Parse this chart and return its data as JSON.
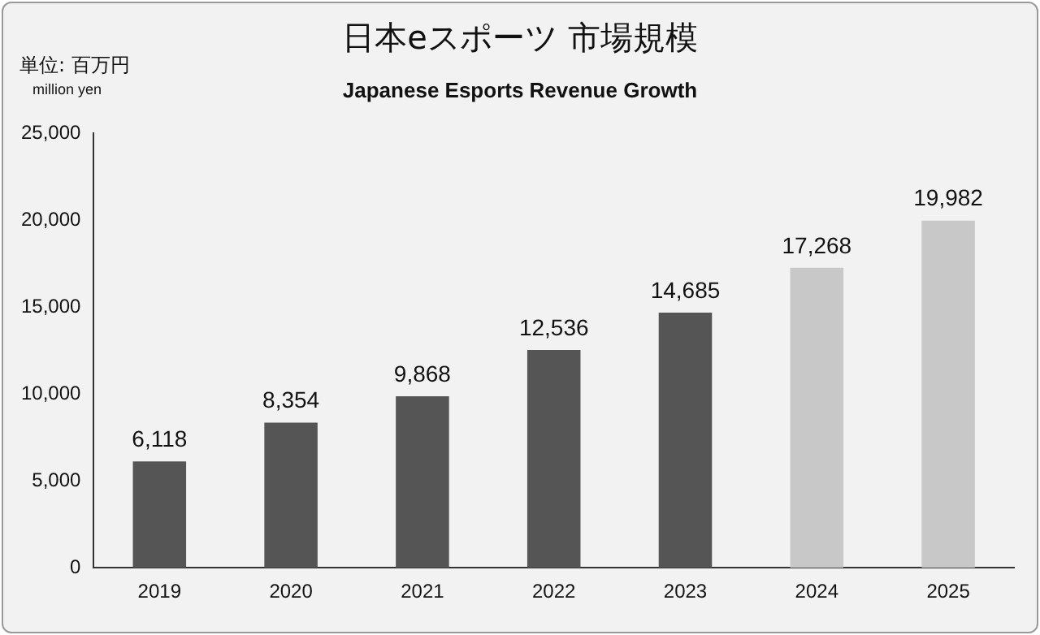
{
  "chart_data": {
    "type": "bar",
    "title": "日本eスポーツ 市場規模",
    "subtitle": "Japanese Esports Revenue Growth",
    "ylabel": "単位: 百万円",
    "annotations": [
      "million yen"
    ],
    "categories": [
      "2019",
      "2020",
      "2021",
      "2022",
      "2023",
      "2024",
      "2025"
    ],
    "values": [
      6118,
      8354,
      9868,
      12536,
      14685,
      17268,
      19982
    ],
    "colors": [
      "#555555",
      "#555555",
      "#555555",
      "#555555",
      "#555555",
      "#c8c8c8",
      "#c8c8c8"
    ],
    "value_labels": [
      "6,118",
      "8,354",
      "9,868",
      "12,536",
      "14,685",
      "17,268",
      "19,982"
    ],
    "ylim": [
      0,
      25000
    ],
    "yticks": [
      0,
      {
        "value": 5000,
        "label": "5,000"
      },
      {
        "value": 10000,
        "label": "10,000"
      },
      {
        "value": 15000,
        "label": "15,000"
      },
      {
        "value": 20000,
        "label": "20,000"
      },
      {
        "value": 25000,
        "label": "25,000"
      }
    ],
    "grid": false,
    "legend": false
  }
}
